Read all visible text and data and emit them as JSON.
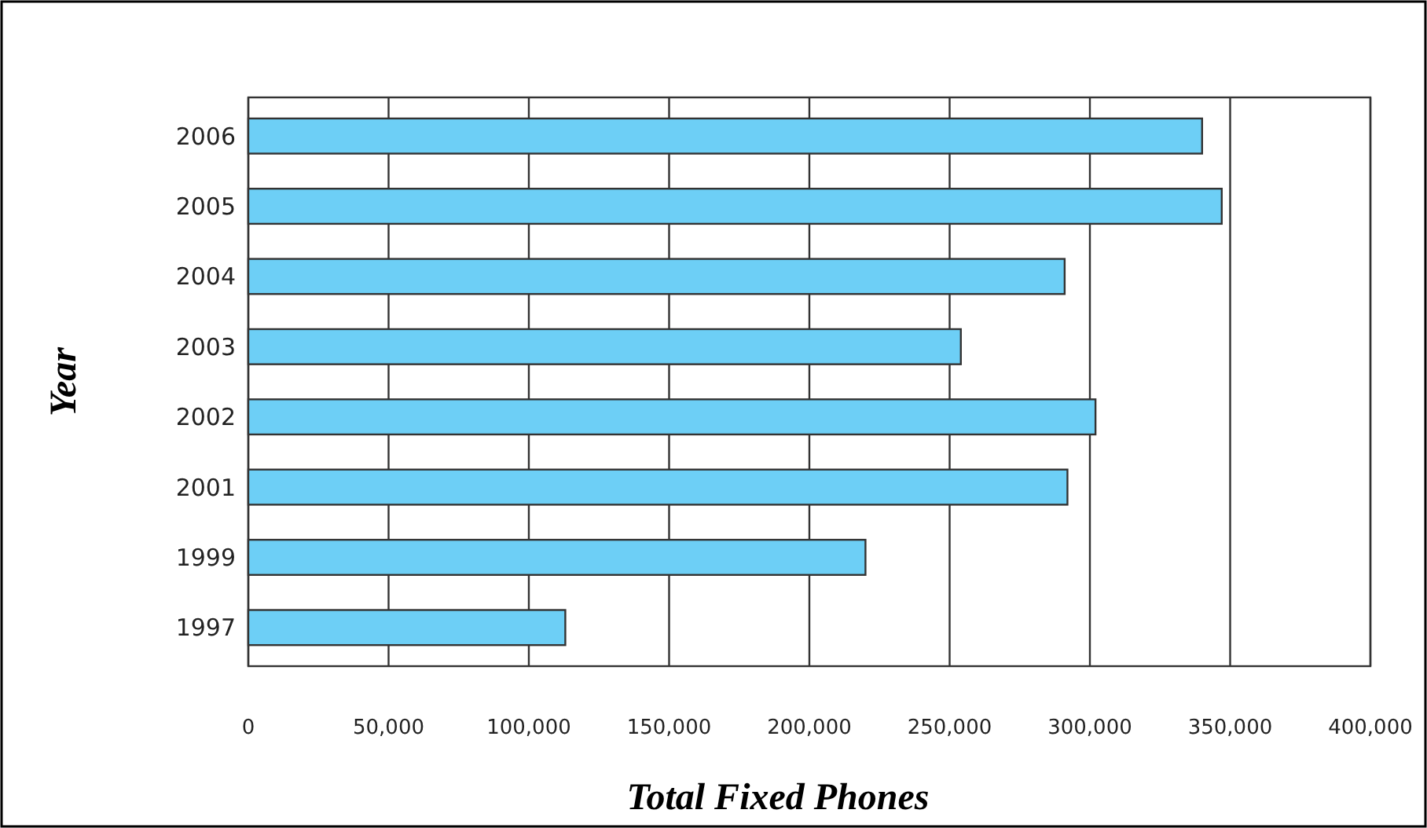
{
  "chart_data": {
    "type": "bar",
    "orientation": "horizontal",
    "xlabel": "Total Fixed Phones",
    "ylabel": "Year",
    "categories": [
      "2006",
      "2005",
      "2004",
      "2003",
      "2002",
      "2001",
      "1999",
      "1997"
    ],
    "values": [
      340000,
      347000,
      291000,
      254000,
      302000,
      292000,
      220000,
      113000
    ],
    "color": "#6dcff6",
    "xlim": [
      0,
      400000
    ],
    "xticks": [
      0,
      {
        "value": 50000,
        "label": "50,000"
      },
      {
        "value": 100000,
        "label": "100,000"
      },
      {
        "value": 150000,
        "label": "150,000"
      },
      {
        "value": 200000,
        "label": "200,000"
      },
      {
        "value": 250000,
        "label": "250,000"
      },
      {
        "value": 300000,
        "label": "300,000"
      },
      {
        "value": 350000,
        "label": "350,000"
      },
      {
        "value": 400000,
        "label": "400,000"
      }
    ],
    "grid": "x"
  }
}
